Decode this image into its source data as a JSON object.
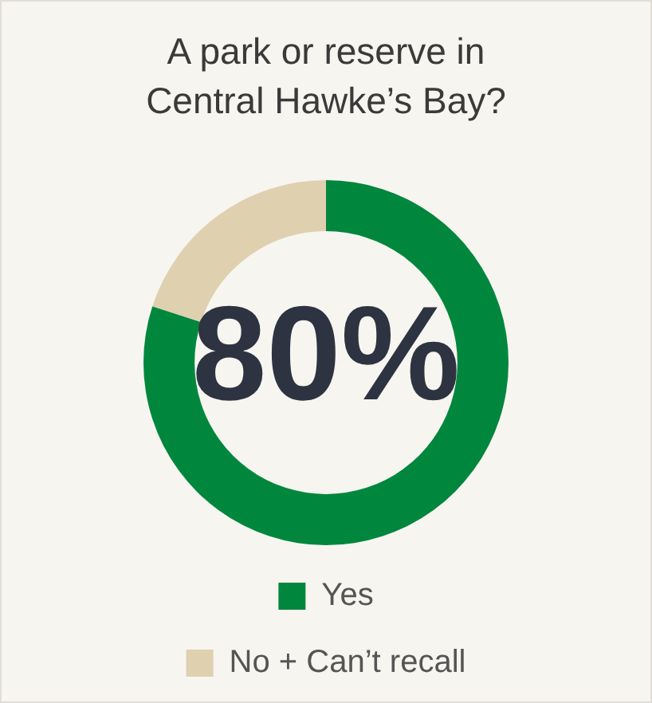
{
  "chart_data": {
    "type": "donut",
    "title": "A park or reserve in Central Hawke’s Bay?",
    "categories": [
      "Yes",
      "No + Can’t recall"
    ],
    "values": [
      80,
      20
    ],
    "colors": [
      "#00873d",
      "#dfd0b0"
    ],
    "annotations": [
      "80%"
    ],
    "legend": "bottom"
  }
}
